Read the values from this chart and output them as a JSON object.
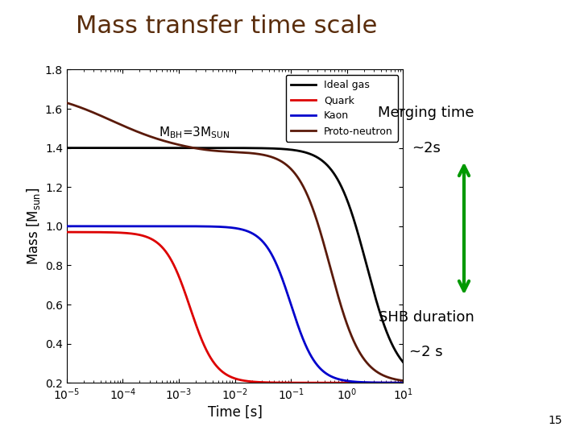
{
  "title": "Mass transfer time scale",
  "title_color": "#5a2d0c",
  "title_fontsize": 22,
  "xlabel": "Time [s]",
  "ylabel": "Mass [M$_{sun}$]",
  "xlim_log": [
    -5,
    1
  ],
  "ylim": [
    0.2,
    1.8
  ],
  "yticks": [
    0.2,
    0.4,
    0.6,
    0.8,
    1.0,
    1.2,
    1.4,
    1.6,
    1.8
  ],
  "legend_labels": [
    "Ideal gas",
    "Quark",
    "Kaon",
    "Proto-neutron"
  ],
  "legend_colors": [
    "#000000",
    "#dd0000",
    "#0000cc",
    "#5a1a0a"
  ],
  "right_text_1": "Merging time",
  "right_text_2": "~2s",
  "right_text_3": "SHB duration",
  "right_text_4": "~2 s",
  "arrow_color": "#009900",
  "page_number": "15",
  "bg_color": "#ffffff",
  "corner_color_top": "#ddd0a8",
  "corner_color_bottom": "#c8b87a"
}
